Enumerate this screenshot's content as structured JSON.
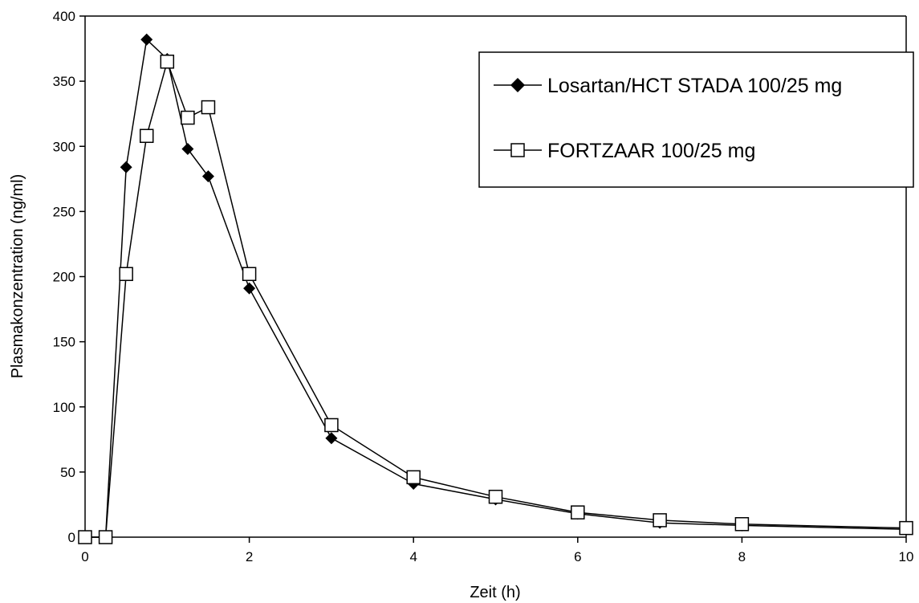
{
  "chart_data": {
    "type": "line",
    "title": "",
    "xlabel": "Zeit (h)",
    "ylabel": "Plasmakonzentration (ng/ml)",
    "xlim": [
      0,
      10
    ],
    "ylim": [
      0,
      400
    ],
    "xticks": [
      "0",
      "2",
      "4",
      "6",
      "8",
      "10"
    ],
    "yticks": [
      "0",
      "50",
      "100",
      "150",
      "200",
      "250",
      "300",
      "350",
      "400"
    ],
    "grid": false,
    "legend_position": "top-right",
    "series": [
      {
        "name": "Losartan/HCT STADA 100/25 mg",
        "marker": "filled-diamond",
        "color": "#000000",
        "x": [
          0,
          0.25,
          0.5,
          0.75,
          1,
          1.25,
          1.5,
          2,
          3,
          4,
          5,
          6,
          7,
          8,
          10
        ],
        "y": [
          0,
          0,
          284,
          382,
          367,
          298,
          277,
          191,
          76,
          41,
          29,
          18,
          11,
          9,
          6
        ]
      },
      {
        "name": "FORTZAAR 100/25 mg",
        "marker": "open-square",
        "color": "#000000",
        "x": [
          0,
          0.25,
          0.5,
          0.75,
          1,
          1.25,
          1.5,
          2,
          3,
          4,
          5,
          6,
          7,
          8,
          10
        ],
        "y": [
          0,
          0,
          202,
          308,
          365,
          322,
          330,
          202,
          86,
          46,
          31,
          19,
          13,
          10,
          7
        ]
      }
    ]
  }
}
